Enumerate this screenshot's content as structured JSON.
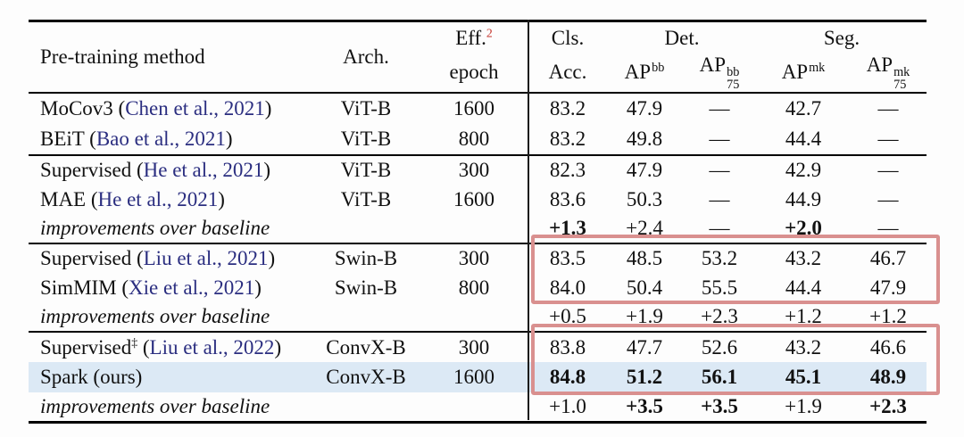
{
  "colors": {
    "citation": "#2b2e80",
    "footnote_red": "#c5342b",
    "highlight_row": "#dce9f5",
    "annotation_box": "#d9908f"
  },
  "header": {
    "method": "Pre-training method",
    "arch": "Arch.",
    "eff": "Eff.",
    "eff_sup": "2",
    "epoch": "epoch",
    "cls": "Cls.",
    "acc": "Acc.",
    "det": "Det.",
    "seg": "Seg.",
    "ap": "AP",
    "bb": "bb",
    "mk": "mk",
    "sub75": "75"
  },
  "rows": [
    {
      "a": "MoCov3 (",
      "cite": "Chen et al., 2021",
      "z": ")",
      "arch": "ViT-B",
      "epoch": "1600",
      "v": [
        "83.2",
        "47.9",
        "—",
        "42.7",
        "—"
      ]
    },
    {
      "a": "BEiT (",
      "cite": "Bao et al., 2021",
      "z": ")",
      "arch": "ViT-B",
      "epoch": "800",
      "v": [
        "83.2",
        "49.8",
        "—",
        "44.4",
        "—"
      ]
    },
    {
      "a": "Supervised (",
      "cite": "He et al., 2021",
      "z": ")",
      "arch": "ViT-B",
      "epoch": "300",
      "v": [
        "82.3",
        "47.9",
        "—",
        "42.9",
        "—"
      ]
    },
    {
      "a": "MAE (",
      "cite": "He et al., 2021",
      "z": ")",
      "arch": "ViT-B",
      "epoch": "1600",
      "v": [
        "83.6",
        "50.3",
        "—",
        "44.9",
        "—"
      ]
    },
    {
      "a": "improvements over baseline",
      "v": [
        "+1.3",
        "+2.4",
        "—",
        "+2.0",
        "—"
      ]
    },
    {
      "a": "Supervised (",
      "cite": "Liu et al., 2021",
      "z": ")",
      "arch": "Swin-B",
      "epoch": "300",
      "v": [
        "83.5",
        "48.5",
        "53.2",
        "43.2",
        "46.7"
      ]
    },
    {
      "a": "SimMIM (",
      "cite": "Xie et al., 2021",
      "z": ")",
      "arch": "Swin-B",
      "epoch": "800",
      "v": [
        "84.0",
        "50.4",
        "55.5",
        "44.4",
        "47.9"
      ]
    },
    {
      "a": "improvements over baseline",
      "v": [
        "+0.5",
        "+1.9",
        "+2.3",
        "+1.2",
        "+1.2"
      ]
    },
    {
      "a": "Supervised",
      "sup": "‡",
      "b": " (",
      "cite": "Liu et al., 2022",
      "z": ")",
      "arch": "ConvX-B",
      "epoch": "300",
      "v": [
        "83.8",
        "47.7",
        "52.6",
        "43.2",
        "46.6"
      ]
    },
    {
      "a": "Spark (ours)",
      "arch": "ConvX-B",
      "epoch": "1600",
      "v": [
        "84.8",
        "51.2",
        "56.1",
        "45.1",
        "48.9"
      ]
    },
    {
      "a": "improvements over baseline",
      "v": [
        "+1.0",
        "+3.5",
        "+3.5",
        "+1.9",
        "+2.3"
      ]
    }
  ]
}
